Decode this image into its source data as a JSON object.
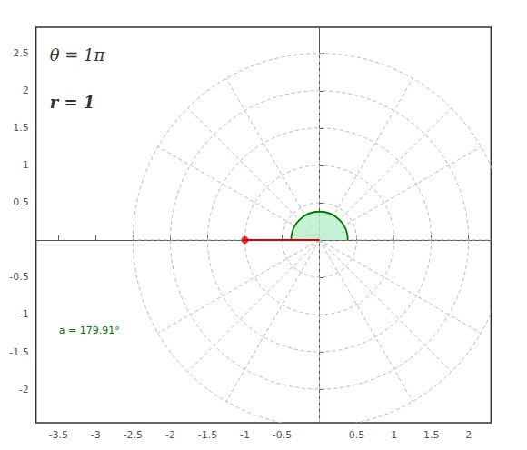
{
  "chart_data": {
    "type": "polar_point",
    "x": [
      -1.0
    ],
    "y": [
      0.0
    ],
    "color": "#dd0000",
    "marker": "circle",
    "arc": {
      "angle_deg": 179.91,
      "radius": 0.38,
      "color": "#007700",
      "fill_color": "#bbeecc"
    },
    "polar_grid": {
      "radii": [
        0.5,
        1.0,
        1.5,
        2.0,
        2.5
      ],
      "angles_deg": [
        0,
        30,
        45,
        60,
        90,
        120,
        135,
        150,
        180,
        210,
        225,
        240,
        270,
        300,
        315,
        330
      ],
      "color": "#bbbbbb"
    },
    "xlim": [
      -3.8,
      2.3
    ],
    "ylim": [
      -2.45,
      2.85
    ],
    "xticks": [
      -3.5,
      -3.0,
      -2.5,
      -2.0,
      -1.5,
      -1.0,
      -0.5,
      0.5,
      1.0,
      1.5,
      2.0
    ],
    "yticks": [
      -2.0,
      -1.5,
      -1.0,
      -0.5,
      0.5,
      1.0,
      1.5,
      2.0,
      2.5
    ],
    "grid": false,
    "annotations": [
      {
        "text": "θ = 1π"
      },
      {
        "text": "r = 1"
      },
      {
        "text": "a = 179.91°",
        "color": "#007700"
      }
    ]
  }
}
